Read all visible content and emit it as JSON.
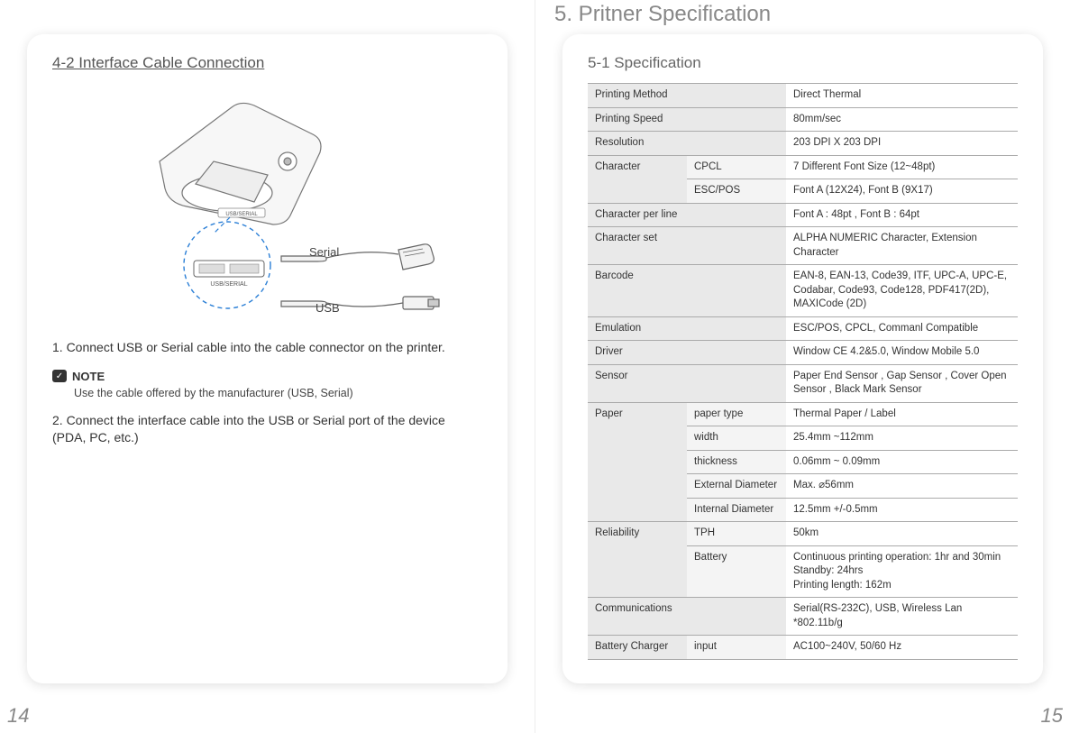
{
  "chapter_title": "5. Pritner Specification",
  "left": {
    "section_title": "4-2 Interface Cable Connection",
    "diagram": {
      "serial_label": "Serial",
      "usb_label": "USB",
      "port_label_1": "USB/SERIAL",
      "port_label_2": "USB/SERIAL"
    },
    "step1": "1. Connect USB or Serial cable into the cable connector on the printer.",
    "note_label": "NOTE",
    "note_text": "Use the cable offered by the manufacturer (USB, Serial)",
    "step2": "2. Connect the interface cable into the USB or Serial port of the device\n    (PDA, PC, etc.)",
    "page_num": "14"
  },
  "right": {
    "section_title": "5-1 Specification",
    "page_num": "15",
    "spec_rows": [
      {
        "h1": "Printing Method",
        "h2": "",
        "val": "Direct Thermal"
      },
      {
        "h1": "Printing Speed",
        "h2": "",
        "val": "80mm/sec"
      },
      {
        "h1": "Resolution",
        "h2": "",
        "val": "203 DPI X 203 DPI"
      },
      {
        "h1": "Character",
        "h2": "CPCL",
        "val": "7 Different Font Size (12~48pt)",
        "rowspan_h1": 2
      },
      {
        "h2": "ESC/POS",
        "val": "Font A (12X24), Font B (9X17)"
      },
      {
        "h1": "Character per line",
        "h2": "",
        "val": "Font A : 48pt , Font B : 64pt"
      },
      {
        "h1": "Character set",
        "h2": "",
        "val": "ALPHA NUMERIC Character, Extension Character"
      },
      {
        "h1": "Barcode",
        "h2": "",
        "val": "EAN-8, EAN-13, Code39, ITF, UPC-A, UPC-E, Codabar, Code93, Code128, PDF417(2D), MAXICode (2D)"
      },
      {
        "h1": "Emulation",
        "h2": "",
        "val": "ESC/POS, CPCL, Commanl Compatible"
      },
      {
        "h1": "Driver",
        "h2": "",
        "val": "Window CE 4.2&5.0, Window Mobile 5.0"
      },
      {
        "h1": "Sensor",
        "h2": "",
        "val": "Paper End Sensor , Gap Sensor , Cover Open Sensor , Black Mark Sensor"
      },
      {
        "h1": "Paper",
        "h2": "paper type",
        "val": "Thermal Paper / Label",
        "rowspan_h1": 5
      },
      {
        "h2": "width",
        "val": "25.4mm ~112mm"
      },
      {
        "h2": "thickness",
        "val": "0.06mm ~ 0.09mm"
      },
      {
        "h2": "External Diameter",
        "val": "Max. ⌀56mm"
      },
      {
        "h2": "Internal Diameter",
        "val": "12.5mm +/-0.5mm"
      },
      {
        "h1": "Reliability",
        "h2": "TPH",
        "val": "50km",
        "rowspan_h1": 2
      },
      {
        "h2": "Battery",
        "val": "Continuous printing operation: 1hr and 30min\nStandby: 24hrs\nPrinting length: 162m"
      },
      {
        "h1": "Communications",
        "h2": "",
        "val": "Serial(RS-232C), USB,  Wireless Lan *802.11b/g"
      },
      {
        "h1": "Battery Charger",
        "h2": "input",
        "val": "AC100~240V, 50/60 Hz"
      }
    ]
  }
}
